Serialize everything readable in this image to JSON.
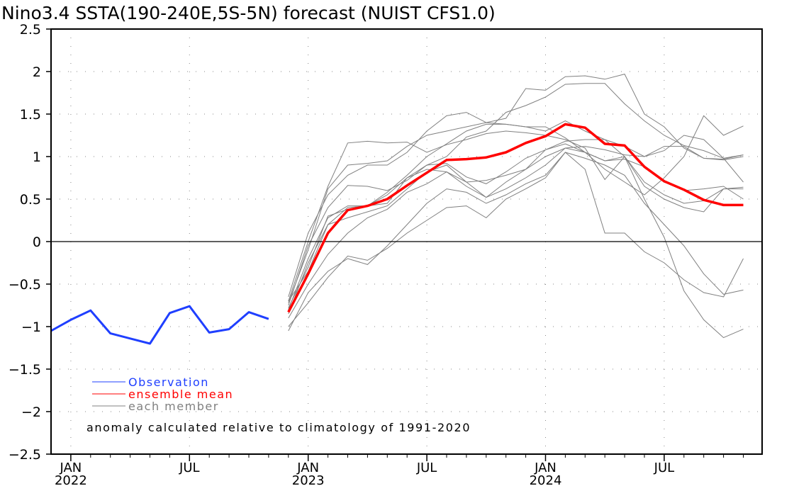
{
  "chart_data": {
    "type": "line",
    "title": "Nino3.4 SSTA(190-240E,5S-5N) forecast (NUIST CFS1.0)",
    "xlabel": "",
    "ylabel": "",
    "ylim": [
      -2.5,
      2.5
    ],
    "yticks": [
      2.5,
      2,
      1.5,
      1,
      0.5,
      0,
      -0.5,
      -1,
      -1.5,
      -2,
      -2.5
    ],
    "ytick_labels": [
      "2.5",
      "2",
      "1.5",
      "1",
      "0.5",
      "0",
      "-0.5",
      "-1",
      "-1.5",
      "-2",
      "-2.5"
    ],
    "xlim": [
      "2021-12",
      "2024-12"
    ],
    "xticks": [
      {
        "month": "2022-01",
        "label1": "JAN",
        "label2": "2022"
      },
      {
        "month": "2022-07",
        "label1": "JUL",
        "label2": ""
      },
      {
        "month": "2023-01",
        "label1": "JAN",
        "label2": "2023"
      },
      {
        "month": "2023-07",
        "label1": "JUL",
        "label2": ""
      },
      {
        "month": "2024-01",
        "label1": "JAN",
        "label2": "2024"
      },
      {
        "month": "2024-07",
        "label1": "JUL",
        "label2": ""
      }
    ],
    "grid": true,
    "legend_position": "bottom-left",
    "legend": [
      "Observation",
      "ensemble mean",
      "each member"
    ],
    "annotation": "anomaly calculated relative to climatology of 1991-2020",
    "colors": {
      "observation": "#1f3fff",
      "ensemble_mean": "#ff0000",
      "member": "#808080",
      "zero_line": "#000000"
    },
    "series": [
      {
        "name": "Observation",
        "start": "2021-12",
        "values": [
          -1.05,
          -0.92,
          -0.81,
          -1.08,
          -1.14,
          -1.2,
          -0.84,
          -0.76,
          -1.07,
          -1.03,
          -0.83,
          -0.91
        ]
      },
      {
        "name": "ensemble mean",
        "start": "2022-12",
        "values": [
          -0.83,
          -0.38,
          0.1,
          0.37,
          0.42,
          0.5,
          0.66,
          0.81,
          0.96,
          0.97,
          0.99,
          1.05,
          1.16,
          1.24,
          1.38,
          1.34,
          1.15,
          1.13,
          0.88,
          0.71,
          0.61,
          0.49,
          0.43,
          0.43
        ]
      }
    ],
    "members": [
      {
        "start": "2022-12",
        "values": [
          -0.7,
          0.0,
          0.65,
          1.16,
          1.18,
          1.16,
          1.17,
          1.05,
          1.14,
          1.2,
          1.27,
          1.3,
          1.28,
          1.25,
          1.2,
          1.1,
          0.73,
          1.0,
          0.5,
          0.05,
          -0.58,
          -0.92,
          -1.13,
          -1.03
        ]
      },
      {
        "start": "2022-12",
        "values": [
          -0.65,
          0.1,
          0.55,
          0.78,
          0.9,
          0.9,
          1.05,
          1.3,
          1.48,
          1.52,
          1.4,
          1.45,
          1.8,
          1.78,
          1.94,
          1.95,
          1.91,
          1.97,
          1.5,
          1.35,
          1.1,
          0.98,
          0.97,
          1.02
        ]
      },
      {
        "start": "2022-12",
        "values": [
          -0.75,
          -0.05,
          0.4,
          0.66,
          0.65,
          0.6,
          0.72,
          0.9,
          1.0,
          1.23,
          1.3,
          1.52,
          1.6,
          1.7,
          1.85,
          1.86,
          1.86,
          1.62,
          1.42,
          1.25,
          1.13,
          1.07,
          0.98,
          1.02
        ]
      },
      {
        "start": "2022-12",
        "values": [
          -0.8,
          -0.2,
          0.28,
          0.42,
          0.42,
          0.58,
          0.78,
          1.0,
          1.15,
          1.3,
          1.38,
          1.38,
          1.35,
          1.3,
          1.42,
          1.3,
          1.2,
          1.12,
          1.0,
          1.07,
          1.25,
          1.2,
          0.98,
          0.7
        ]
      },
      {
        "start": "2022-12",
        "values": [
          -0.85,
          -0.25,
          0.2,
          0.4,
          0.42,
          0.45,
          0.75,
          0.9,
          0.92,
          0.76,
          0.68,
          0.82,
          0.98,
          1.08,
          1.18,
          1.2,
          1.2,
          1.0,
          0.7,
          0.55,
          0.45,
          0.48,
          0.62,
          0.64
        ]
      },
      {
        "start": "2022-12",
        "values": [
          -0.78,
          -0.3,
          0.3,
          0.38,
          0.42,
          0.55,
          0.75,
          0.85,
          0.82,
          0.7,
          0.72,
          0.78,
          0.85,
          1.0,
          1.1,
          1.12,
          1.08,
          1.02,
          1.0,
          1.12,
          1.12,
          0.98,
          0.96,
          1.0
        ]
      },
      {
        "start": "2022-12",
        "values": [
          -0.7,
          -0.35,
          0.2,
          0.28,
          0.35,
          0.42,
          0.62,
          0.82,
          0.9,
          0.7,
          0.52,
          0.7,
          0.85,
          1.08,
          1.15,
          1.05,
          0.95,
          0.97,
          0.88,
          0.7,
          0.6,
          0.62,
          0.65,
          0.5
        ]
      },
      {
        "start": "2022-12",
        "values": [
          -0.9,
          -0.5,
          -0.15,
          0.1,
          0.28,
          0.38,
          0.58,
          0.68,
          0.82,
          0.65,
          0.52,
          0.62,
          0.75,
          0.9,
          1.1,
          1.05,
          0.95,
          1.0,
          0.65,
          0.5,
          0.4,
          0.35,
          0.62,
          0.62
        ]
      },
      {
        "start": "2022-12",
        "values": [
          -1.05,
          -0.6,
          -0.35,
          -0.2,
          -0.27,
          -0.05,
          0.2,
          0.45,
          0.62,
          0.58,
          0.45,
          0.55,
          0.68,
          0.78,
          1.05,
          0.98,
          0.9,
          0.78,
          0.45,
          0.2,
          -0.05,
          -0.38,
          -0.62,
          -0.57
        ]
      },
      {
        "start": "2022-12",
        "values": [
          -1.0,
          -0.72,
          -0.42,
          -0.17,
          -0.22,
          -0.08,
          0.1,
          0.25,
          0.4,
          0.42,
          0.28,
          0.5,
          0.62,
          0.75,
          1.05,
          0.85,
          0.1,
          0.1,
          -0.12,
          -0.25,
          -0.45,
          -0.6,
          -0.65,
          -0.2
        ]
      },
      {
        "start": "2022-12",
        "values": [
          -0.72,
          -0.1,
          0.62,
          0.9,
          0.92,
          0.95,
          1.12,
          1.25,
          1.3,
          1.35,
          1.4,
          1.38,
          1.35,
          1.35,
          1.22,
          1.05,
          0.85,
          0.7,
          0.55,
          0.75,
          1.0,
          1.48,
          1.25,
          1.36
        ]
      }
    ]
  }
}
